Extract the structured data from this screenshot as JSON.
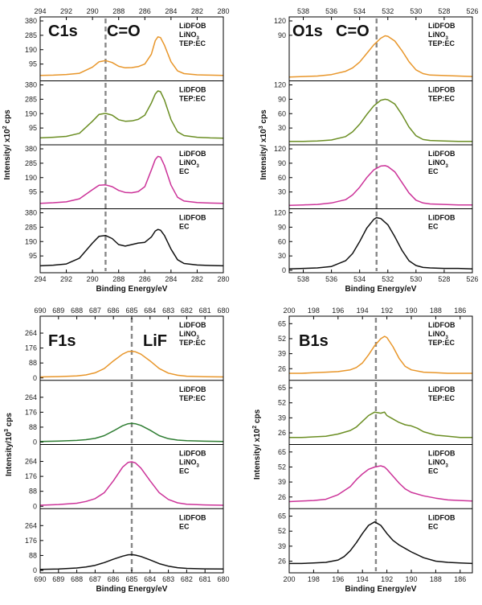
{
  "chart_data": [
    {
      "type": "line",
      "id": "c1s",
      "title": "C1s",
      "annotation": "C=O",
      "xlabel": "Binding Energy/eV",
      "ylabel": "Intensity/ x10² cps",
      "xlim": [
        294,
        280
      ],
      "x_ticks": [
        294,
        292,
        290,
        288,
        286,
        284,
        282,
        280
      ],
      "dashed_line_x": 289.0,
      "y_ticks": [
        95,
        190,
        285,
        380
      ],
      "y_tick_labels_per_subplot": [
        [
          "95",
          "190",
          "285",
          "380"
        ],
        [
          "95",
          "190",
          "285",
          "380"
        ],
        [
          "95",
          "190",
          "285",
          "380"
        ],
        [
          "95",
          "190",
          "285",
          "380"
        ]
      ],
      "ylim": [
        0,
        380
      ],
      "series": [
        {
          "name": "LiDFOB LiNO3 TEP:EC",
          "legend": [
            "LiDFOB",
            "LiNO3",
            "TEP:EC"
          ],
          "color": "#e8962a",
          "x": [
            294,
            293,
            292,
            291,
            290,
            289.5,
            289,
            288.5,
            288,
            287.5,
            287,
            286.5,
            286,
            285.5,
            285.2,
            285,
            284.8,
            284.5,
            284,
            283.5,
            283,
            282,
            281,
            280
          ],
          "y": [
            20,
            22,
            26,
            34,
            75,
            110,
            118,
            105,
            80,
            70,
            72,
            78,
            95,
            160,
            250,
            275,
            270,
            220,
            110,
            50,
            32,
            24,
            22,
            20
          ]
        },
        {
          "name": "LiDFOB TEP:EC",
          "legend": [
            "LiDFOB",
            "TEP:EC"
          ],
          "color": "#6b8e23",
          "x": [
            294,
            293,
            292,
            291,
            290,
            289.5,
            289,
            288.5,
            288,
            287.5,
            287,
            286.5,
            286,
            285.5,
            285.2,
            285,
            284.8,
            284.5,
            284,
            283.5,
            283,
            282,
            281,
            280
          ],
          "y": [
            30,
            34,
            40,
            60,
            140,
            185,
            192,
            180,
            150,
            140,
            142,
            152,
            180,
            260,
            320,
            340,
            335,
            280,
            150,
            70,
            45,
            34,
            30,
            28
          ]
        },
        {
          "name": "LiDFOB LiNO3 EC",
          "legend": [
            "LiDFOB",
            "LiNO3",
            "EC"
          ],
          "color": "#cc3399",
          "x": [
            294,
            293,
            292,
            291,
            290,
            289.5,
            289,
            288.5,
            288,
            287.5,
            287,
            286.5,
            286,
            285.5,
            285.2,
            285,
            284.8,
            284.5,
            284,
            283.5,
            283,
            282,
            281,
            280
          ],
          "y": [
            20,
            24,
            30,
            50,
            110,
            140,
            142,
            130,
            105,
            92,
            90,
            98,
            130,
            240,
            310,
            330,
            325,
            270,
            140,
            60,
            35,
            25,
            22,
            20
          ]
        },
        {
          "name": "LiDFOB EC",
          "legend": [
            "LiDFOB",
            "EC"
          ],
          "color": "#111111",
          "x": [
            294,
            293,
            292,
            291,
            290,
            289.5,
            289,
            288.5,
            288,
            287.5,
            287,
            286.5,
            286,
            285.5,
            285.2,
            285,
            284.8,
            284.5,
            284,
            283.5,
            283,
            282,
            281,
            280
          ],
          "y": [
            30,
            34,
            42,
            80,
            180,
            225,
            230,
            210,
            170,
            160,
            170,
            180,
            185,
            220,
            260,
            270,
            265,
            230,
            140,
            70,
            45,
            35,
            32,
            30
          ]
        }
      ]
    },
    {
      "type": "line",
      "id": "o1s",
      "title": "O1s",
      "annotation": "C=O",
      "xlabel": "Binding Energy/eV",
      "ylabel": "Intensity/ x10³ cps",
      "xlim": [
        539,
        526
      ],
      "x_ticks": [
        538,
        536,
        534,
        532,
        530,
        528,
        526
      ],
      "dashed_line_x": 532.8,
      "y_ticks": [
        0,
        30,
        60,
        90,
        120
      ],
      "y_tick_labels_per_subplot": [
        [
          "90",
          "120"
        ],
        [
          "30",
          "60",
          "90",
          "120"
        ],
        [
          "30",
          "60",
          "90",
          "120"
        ],
        [
          "0",
          "30",
          "60",
          "90",
          "120"
        ]
      ],
      "ylim": [
        0,
        120
      ],
      "series": [
        {
          "name": "LiDFOB LiNO3 TEP:EC",
          "legend": [
            "LiDFOB",
            "LiNO3",
            "TEP:EC"
          ],
          "color": "#e8962a",
          "x": [
            539,
            538,
            537,
            536,
            535,
            534.5,
            534,
            533.5,
            533,
            532.5,
            532.2,
            532,
            531.5,
            531,
            530.5,
            530,
            529.5,
            529,
            528,
            527,
            526
          ],
          "y": [
            3,
            4,
            5,
            8,
            15,
            22,
            34,
            52,
            70,
            84,
            89,
            88,
            78,
            58,
            35,
            18,
            10,
            7,
            6,
            5,
            4
          ]
        },
        {
          "name": "LiDFOB TEP:EC",
          "legend": [
            "LiDFOB",
            "TEP:EC"
          ],
          "color": "#6b8e23",
          "x": [
            539,
            538,
            537,
            536,
            535,
            534.5,
            534,
            533.5,
            533,
            532.5,
            532.2,
            532,
            531.5,
            531,
            530.5,
            530,
            529.5,
            529,
            528,
            527,
            526
          ],
          "y": [
            2,
            2,
            3,
            5,
            12,
            22,
            38,
            58,
            76,
            88,
            90,
            89,
            80,
            58,
            32,
            14,
            6,
            4,
            3,
            2,
            2
          ]
        },
        {
          "name": "LiDFOB LiNO3 EC",
          "legend": [
            "LiDFOB",
            "LiNO3",
            "EC"
          ],
          "color": "#cc3399",
          "x": [
            539,
            538,
            537,
            536,
            535,
            534.5,
            534,
            533.5,
            533,
            532.5,
            532.2,
            532,
            531.5,
            531,
            530.5,
            530,
            529.5,
            529,
            528,
            527,
            526
          ],
          "y": [
            2,
            3,
            4,
            7,
            14,
            24,
            40,
            60,
            76,
            84,
            85,
            83,
            72,
            50,
            28,
            13,
            7,
            5,
            4,
            3,
            3
          ]
        },
        {
          "name": "LiDFOB EC",
          "legend": [
            "LiDFOB",
            "EC"
          ],
          "color": "#111111",
          "x": [
            539,
            538,
            537,
            536,
            535,
            534.5,
            534,
            533.5,
            533,
            532.8,
            532.5,
            532,
            531.5,
            531,
            530.5,
            530,
            529.5,
            529,
            528,
            527,
            526
          ],
          "y": [
            3,
            4,
            5,
            8,
            20,
            35,
            60,
            88,
            106,
            110,
            108,
            95,
            70,
            42,
            20,
            10,
            6,
            5,
            4,
            4,
            3
          ]
        }
      ]
    },
    {
      "type": "line",
      "id": "f1s",
      "title": "F1s",
      "annotation": "LiF",
      "xlabel": "Binding Energy/eV",
      "ylabel": "Intensity/10³ cps",
      "xlim": [
        690,
        680
      ],
      "x_ticks": [
        690,
        689,
        688,
        687,
        686,
        685,
        684,
        683,
        682,
        681,
        680
      ],
      "dashed_line_x": 685.0,
      "y_ticks": [
        0,
        88,
        176,
        264
      ],
      "y_tick_labels_per_subplot": [
        [
          "0",
          "88",
          "176",
          "264"
        ],
        [
          "0",
          "88",
          "176",
          "264"
        ],
        [
          "0",
          "88",
          "176",
          "264"
        ],
        [
          "0",
          "88",
          "176",
          "264"
        ]
      ],
      "ylim": [
        0,
        340
      ],
      "series": [
        {
          "name": "LiDFOB LiNO3 TEP:EC",
          "legend": [
            "LiDFOB",
            "LiNO3",
            "TEP:EC"
          ],
          "color": "#e8962a",
          "x": [
            690,
            689,
            688,
            687.5,
            687,
            686.5,
            686,
            685.5,
            685.2,
            685,
            684.8,
            684.5,
            684,
            683.5,
            683,
            682.5,
            682,
            681,
            680
          ],
          "y": [
            6,
            8,
            12,
            18,
            30,
            55,
            100,
            140,
            155,
            157,
            154,
            140,
            100,
            55,
            28,
            16,
            10,
            7,
            6
          ]
        },
        {
          "name": "LiDFOB TEP:EC",
          "legend": [
            "LiDFOB",
            "TEP:EC"
          ],
          "color": "#2e7d32",
          "x": [
            690,
            689,
            688,
            687.5,
            687,
            686.5,
            686,
            685.5,
            685.2,
            685,
            684.8,
            684.5,
            684,
            683.5,
            683,
            682.5,
            682,
            681,
            680
          ],
          "y": [
            4,
            6,
            10,
            14,
            22,
            38,
            66,
            96,
            108,
            110,
            108,
            98,
            70,
            38,
            20,
            12,
            8,
            5,
            4
          ]
        },
        {
          "name": "LiDFOB LiNO3 EC",
          "legend": [
            "LiDFOB",
            "LiNO3",
            "EC"
          ],
          "color": "#cc3399",
          "x": [
            690,
            689,
            688,
            687.5,
            687,
            686.5,
            686,
            685.5,
            685.2,
            685,
            684.8,
            684.5,
            684,
            683.5,
            683,
            682.5,
            682,
            681,
            680
          ],
          "y": [
            6,
            10,
            18,
            28,
            45,
            80,
            150,
            230,
            258,
            262,
            255,
            225,
            150,
            80,
            40,
            20,
            12,
            8,
            6
          ]
        },
        {
          "name": "LiDFOB EC",
          "legend": [
            "LiDFOB",
            "EC"
          ],
          "color": "#111111",
          "x": [
            690,
            689,
            688,
            687.5,
            687,
            686.5,
            686,
            685.5,
            685.2,
            685,
            684.8,
            684.5,
            684,
            683.5,
            683,
            682.5,
            682,
            681,
            680
          ],
          "y": [
            6,
            8,
            14,
            20,
            30,
            46,
            66,
            84,
            92,
            93,
            90,
            82,
            62,
            40,
            25,
            16,
            12,
            9,
            8
          ]
        }
      ]
    },
    {
      "type": "line",
      "id": "b1s",
      "title": "B1s",
      "annotation": "",
      "xlabel": "Binding Energy/eV",
      "ylabel": "Intensity/ x10² cps",
      "xlim": [
        200,
        185
      ],
      "x_ticks": [
        200,
        198,
        196,
        194,
        192,
        190,
        188,
        186
      ],
      "dashed_line_x": 192.9,
      "y_ticks": [
        26,
        39,
        52,
        65
      ],
      "y_tick_labels_per_subplot": [
        [
          "26",
          "39",
          "52",
          "65"
        ],
        [
          "26",
          "39",
          "52",
          "65"
        ],
        [
          "26",
          "39",
          "52",
          "65"
        ],
        [
          "26",
          "39",
          "52",
          "65"
        ]
      ],
      "ylim": [
        18,
        68
      ],
      "series": [
        {
          "name": "LiDFOB LiNO3 TEP:EC",
          "legend": [
            "LiDFOB",
            "LiNO3",
            "TEP:EC"
          ],
          "color": "#e8962a",
          "x": [
            200,
            199,
            198,
            197,
            196,
            195,
            194.5,
            194,
            193.5,
            193,
            192.5,
            192.2,
            192,
            191.5,
            191,
            190.5,
            190,
            189,
            188,
            187,
            186,
            185
          ],
          "y": [
            22,
            22,
            22.5,
            23,
            23.5,
            25,
            27,
            31,
            38,
            46,
            52,
            54,
            53,
            45,
            35,
            28,
            25,
            23,
            22.5,
            22,
            22,
            22
          ]
        },
        {
          "name": "LiDFOB TEP:EC",
          "legend": [
            "LiDFOB",
            "TEP:EC"
          ],
          "color": "#6b8e23",
          "x": [
            200,
            199,
            198,
            197,
            196,
            195,
            194.5,
            194,
            193.5,
            193,
            192.5,
            192.2,
            192,
            191.5,
            191,
            190.5,
            190,
            189.5,
            189,
            188,
            187,
            186,
            185
          ],
          "y": [
            22,
            22,
            22.5,
            23,
            25,
            28,
            31,
            36,
            41,
            44,
            43,
            44,
            41,
            38,
            35,
            33,
            32,
            30,
            27,
            24,
            23,
            22,
            22
          ]
        },
        {
          "name": "LiDFOB LiNO3 EC",
          "legend": [
            "LiDFOB",
            "LiNO3",
            "EC"
          ],
          "color": "#cc3399",
          "x": [
            200,
            199,
            198,
            197,
            196,
            195,
            194.5,
            194,
            193.5,
            193,
            192.5,
            192.2,
            192,
            191.5,
            191,
            190.5,
            190,
            189,
            188,
            187,
            186,
            185
          ],
          "y": [
            22,
            22.5,
            23,
            24,
            28,
            35,
            41,
            46,
            50,
            52,
            53,
            52,
            50,
            44,
            38,
            33,
            30,
            27,
            25,
            23.5,
            23,
            22.5
          ]
        },
        {
          "name": "LiDFOB EC",
          "legend": [
            "LiDFOB",
            "EC"
          ],
          "color": "#111111",
          "x": [
            200,
            199,
            198,
            197,
            196,
            195.5,
            195,
            194.5,
            194,
            193.5,
            193,
            192.5,
            192,
            191.5,
            191,
            190.5,
            190,
            189,
            188,
            187,
            186,
            185
          ],
          "y": [
            24,
            24,
            24.5,
            25,
            27,
            30,
            35,
            42,
            50,
            57,
            60,
            57,
            50,
            44,
            40,
            37,
            34,
            29,
            26,
            25,
            24.5,
            24
          ]
        }
      ]
    }
  ]
}
